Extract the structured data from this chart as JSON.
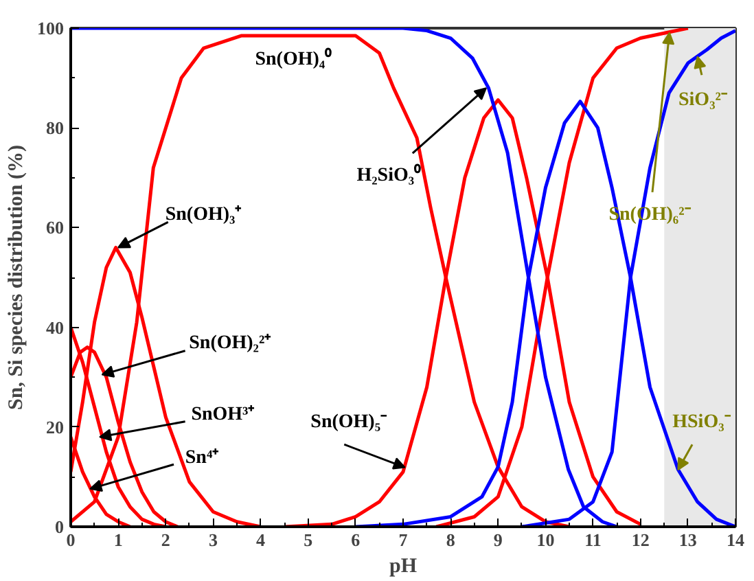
{
  "chart_data": {
    "type": "line",
    "xlabel": "pH",
    "ylabel": "Sn, Si species distribution (%)",
    "xlim": [
      0,
      14
    ],
    "ylim": [
      0,
      100
    ],
    "xticks": [
      0,
      1,
      2,
      3,
      4,
      5,
      6,
      7,
      8,
      9,
      10,
      11,
      12,
      13,
      14
    ],
    "yticks": [
      0,
      20,
      40,
      60,
      80,
      100
    ],
    "grid": false,
    "marker": "none",
    "line_style": "solid",
    "series": [
      {
        "color": "#ff0000",
        "x": [
          0,
          0.25,
          0.5,
          0.75,
          1.0,
          1.25
        ],
        "values": [
          18,
          11,
          6,
          2.5,
          1,
          0
        ]
      },
      {
        "color": "#ff0000",
        "x": [
          0,
          0.25,
          0.5,
          0.75,
          1.0,
          1.25,
          1.5,
          1.75,
          2.0
        ],
        "values": [
          40,
          33,
          24,
          15,
          8,
          4,
          1.5,
          0.5,
          0
        ]
      },
      {
        "color": "#ff0000",
        "x": [
          0,
          0.2,
          0.35,
          0.5,
          0.75,
          1,
          1.25,
          1.5,
          1.75,
          2,
          2.25
        ],
        "values": [
          30,
          35,
          36,
          35,
          30,
          21,
          13,
          7,
          3,
          1,
          0
        ]
      },
      {
        "color": "#ff0000",
        "x": [
          0,
          0.25,
          0.5,
          0.75,
          0.95,
          1.25,
          1.5,
          1.75,
          2,
          2.5,
          3,
          3.5,
          4
        ],
        "values": [
          11,
          25,
          41,
          52,
          56,
          51,
          42,
          32,
          22,
          9,
          3,
          1,
          0
        ]
      },
      {
        "color": "#ff0000",
        "x": [
          0,
          0.5,
          1,
          1.39,
          1.74,
          2.33,
          2.8,
          3.6,
          6,
          6.5,
          6.8,
          7.29,
          7.58,
          7.9,
          8.5,
          9,
          9.5,
          10,
          10.5
        ],
        "values": [
          1,
          5,
          18,
          41,
          72,
          90,
          96,
          98.5,
          98.5,
          95,
          88,
          78,
          64,
          50,
          25,
          12,
          4,
          1,
          0
        ]
      },
      {
        "color": "#ff0000",
        "x": [
          4.5,
          5.5,
          6,
          6.5,
          7,
          7.5,
          7.9,
          8.3,
          8.7,
          9,
          9.3,
          9.6,
          10.04,
          10.5,
          11,
          11.5,
          12
        ],
        "values": [
          0,
          0.5,
          2,
          5,
          11,
          28,
          50,
          70,
          82,
          85.6,
          82,
          70,
          50,
          25,
          10,
          3,
          0.5
        ]
      },
      {
        "color": "#ff0000",
        "x": [
          7.7,
          8.5,
          9,
          9.5,
          10.04,
          10.5,
          11,
          11.5,
          12,
          12.5,
          13
        ],
        "values": [
          0,
          2,
          6,
          20,
          50,
          73,
          90,
          96,
          98,
          99,
          100
        ]
      },
      {
        "color": "#0000ff",
        "x": [
          0,
          7,
          7.5,
          8,
          8.46,
          8.8,
          9.2,
          9.64,
          10,
          10.48,
          10.8,
          11.2,
          11.5
        ],
        "values": [
          100,
          100,
          99.5,
          98,
          94,
          88,
          75,
          50,
          30,
          11.5,
          4,
          1,
          0
        ]
      },
      {
        "color": "#0000ff",
        "x": [
          6,
          7,
          8,
          8.66,
          9,
          9.3,
          9.64,
          10,
          10.4,
          10.73,
          11.1,
          11.4,
          11.79,
          12.2,
          12.79,
          13.2,
          13.6,
          14
        ],
        "values": [
          0,
          0.5,
          2,
          6,
          12,
          25,
          50,
          68,
          81,
          85.3,
          80,
          68,
          50,
          28,
          11.5,
          5,
          1.5,
          0
        ]
      },
      {
        "color": "#0000ff",
        "x": [
          9.5,
          10.5,
          11,
          11.4,
          11.79,
          12.2,
          12.6,
          13,
          13.4,
          13.7,
          14
        ],
        "values": [
          0,
          1.5,
          5,
          15,
          50,
          72,
          87,
          93,
          95.7,
          98,
          99.5
        ]
      }
    ],
    "bands": [
      {
        "axis": "x",
        "from": 12.5,
        "to": 14,
        "color": "#e8e8e8"
      }
    ],
    "annotations": [
      "Sn(OH)₄⁰",
      {
        "text": "Sn(OH)₃⁺",
        "x": 1.0,
        "y": 56
      },
      {
        "text": "Sn(OH)₂²⁺",
        "x": 0.66,
        "y": 30.5
      },
      {
        "text": "SnOH³⁺",
        "x": 0.61,
        "y": 18
      },
      {
        "text": "Sn⁴⁺",
        "x": 0.41,
        "y": 7.6
      },
      {
        "text": "Sn(OH)₅⁻",
        "x": 7.04,
        "y": 11.9
      },
      {
        "text": "H₂SiO₃⁰",
        "x": 8.75,
        "y": 88
      },
      {
        "text": "SiO₃²⁻",
        "x": 13.2,
        "y": 94.3
      },
      {
        "text": "Sn(OH)₆²⁻",
        "x": 12.61,
        "y": 99.1
      },
      {
        "text": "HSiO₃⁻",
        "x": 12.79,
        "y": 11.4
      }
    ]
  }
}
